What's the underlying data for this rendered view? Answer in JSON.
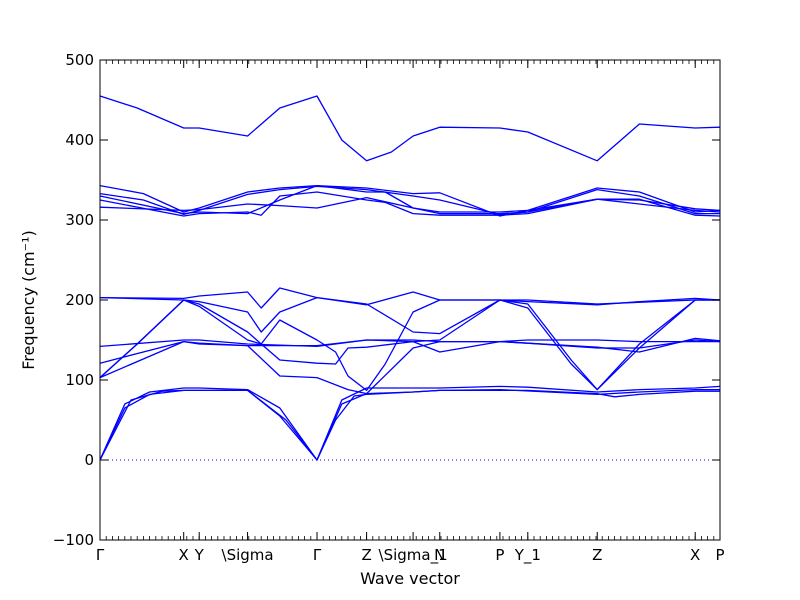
{
  "chart_data": {
    "type": "line",
    "xlabel": "Wave vector",
    "ylabel": "Frequency (cm⁻¹)",
    "ylim": [
      -100,
      500
    ],
    "y_ticks": [
      -100,
      0,
      100,
      200,
      300,
      400,
      500
    ],
    "y_tick_labels": [
      "−100",
      "0",
      "100",
      "200",
      "300",
      "400",
      "500"
    ],
    "grid": false,
    "line_color": "#0000ff",
    "zero_line_color": "#0000ff",
    "high_symmetry_points": [
      {
        "label": "Γ",
        "x": 0.0
      },
      {
        "label": "X",
        "x": 0.135
      },
      {
        "label": "Y",
        "x": 0.16
      },
      {
        "label": "\\Sigma",
        "x": 0.238
      },
      {
        "label": "Γ",
        "x": 0.35
      },
      {
        "label": "Z",
        "x": 0.43
      },
      {
        "label": "\\Sigma_1",
        "x": 0.505
      },
      {
        "label": "N",
        "x": 0.548
      },
      {
        "label": "P",
        "x": 0.645
      },
      {
        "label": "Y_1",
        "x": 0.69
      },
      {
        "label": "Z",
        "x": 0.802
      },
      {
        "label": "X",
        "x": 0.96
      },
      {
        "label": "P",
        "x": 1.0
      }
    ],
    "series": [
      {
        "values": [
          [
            0,
            455
          ],
          [
            0.06,
            440
          ],
          [
            0.135,
            415
          ],
          [
            0.16,
            415
          ],
          [
            0.238,
            405
          ],
          [
            0.29,
            440
          ],
          [
            0.35,
            455
          ],
          [
            0.39,
            400
          ],
          [
            0.43,
            374
          ],
          [
            0.47,
            385
          ],
          [
            0.505,
            405
          ],
          [
            0.548,
            416
          ],
          [
            0.645,
            415
          ],
          [
            0.69,
            410
          ],
          [
            0.802,
            374
          ],
          [
            0.87,
            420
          ],
          [
            0.96,
            415
          ],
          [
            1.0,
            416
          ]
        ]
      },
      {
        "values": [
          [
            0,
            343
          ],
          [
            0.07,
            333
          ],
          [
            0.135,
            310
          ],
          [
            0.16,
            315
          ],
          [
            0.238,
            335
          ],
          [
            0.29,
            340
          ],
          [
            0.35,
            343
          ],
          [
            0.43,
            340
          ],
          [
            0.505,
            333
          ],
          [
            0.548,
            334
          ],
          [
            0.645,
            305
          ],
          [
            0.69,
            312
          ],
          [
            0.802,
            340
          ],
          [
            0.87,
            335
          ],
          [
            0.96,
            310
          ],
          [
            1.0,
            312
          ]
        ]
      },
      {
        "values": [
          [
            0,
            333
          ],
          [
            0.07,
            325
          ],
          [
            0.135,
            307
          ],
          [
            0.16,
            312
          ],
          [
            0.238,
            332
          ],
          [
            0.29,
            338
          ],
          [
            0.35,
            342
          ],
          [
            0.43,
            338
          ],
          [
            0.505,
            330
          ],
          [
            0.548,
            325
          ],
          [
            0.645,
            307
          ],
          [
            0.69,
            310
          ],
          [
            0.802,
            338
          ],
          [
            0.87,
            330
          ],
          [
            0.96,
            308
          ],
          [
            1.0,
            308
          ]
        ]
      },
      {
        "values": [
          [
            0,
            316
          ],
          [
            0.135,
            312
          ],
          [
            0.16,
            313
          ],
          [
            0.238,
            320
          ],
          [
            0.29,
            318
          ],
          [
            0.35,
            315
          ],
          [
            0.43,
            328
          ],
          [
            0.505,
            315
          ],
          [
            0.548,
            310
          ],
          [
            0.645,
            310
          ],
          [
            0.69,
            312
          ],
          [
            0.802,
            326
          ],
          [
            0.87,
            325
          ],
          [
            0.96,
            314
          ],
          [
            1.0,
            312
          ]
        ]
      },
      {
        "values": [
          [
            0,
            325
          ],
          [
            0.135,
            305
          ],
          [
            0.16,
            308
          ],
          [
            0.238,
            310
          ],
          [
            0.26,
            306
          ],
          [
            0.29,
            330
          ],
          [
            0.35,
            335
          ],
          [
            0.43,
            325
          ],
          [
            0.46,
            322
          ],
          [
            0.505,
            308
          ],
          [
            0.548,
            306
          ],
          [
            0.645,
            306
          ],
          [
            0.69,
            308
          ],
          [
            0.802,
            326
          ],
          [
            0.87,
            326
          ],
          [
            0.96,
            306
          ],
          [
            1.0,
            305
          ]
        ]
      },
      {
        "values": [
          [
            0,
            330
          ],
          [
            0.135,
            308
          ],
          [
            0.16,
            310
          ],
          [
            0.238,
            308
          ],
          [
            0.29,
            325
          ],
          [
            0.35,
            343
          ],
          [
            0.43,
            335
          ],
          [
            0.46,
            335
          ],
          [
            0.505,
            315
          ],
          [
            0.548,
            308
          ],
          [
            0.645,
            308
          ],
          [
            0.69,
            310
          ],
          [
            0.802,
            326
          ],
          [
            0.96,
            312
          ],
          [
            1.0,
            310
          ]
        ]
      },
      {
        "values": [
          [
            0,
            203
          ],
          [
            0.135,
            202
          ],
          [
            0.16,
            205
          ],
          [
            0.238,
            210
          ],
          [
            0.26,
            190
          ],
          [
            0.29,
            215
          ],
          [
            0.35,
            203
          ],
          [
            0.43,
            194
          ],
          [
            0.505,
            210
          ],
          [
            0.548,
            200
          ],
          [
            0.645,
            200
          ],
          [
            0.69,
            198
          ],
          [
            0.802,
            194
          ],
          [
            0.87,
            198
          ],
          [
            0.96,
            202
          ],
          [
            1.0,
            200
          ]
        ]
      },
      {
        "values": [
          [
            0,
            203
          ],
          [
            0.135,
            200
          ],
          [
            0.16,
            198
          ],
          [
            0.238,
            185
          ],
          [
            0.26,
            160
          ],
          [
            0.29,
            185
          ],
          [
            0.35,
            203
          ],
          [
            0.43,
            195
          ],
          [
            0.505,
            160
          ],
          [
            0.548,
            158
          ],
          [
            0.645,
            200
          ],
          [
            0.69,
            200
          ],
          [
            0.802,
            195
          ],
          [
            0.96,
            200
          ],
          [
            1.0,
            200
          ]
        ]
      },
      {
        "values": [
          [
            0,
            103
          ],
          [
            0.06,
            145
          ],
          [
            0.135,
            200
          ],
          [
            0.16,
            195
          ],
          [
            0.238,
            160
          ],
          [
            0.26,
            145
          ],
          [
            0.29,
            125
          ],
          [
            0.35,
            121
          ],
          [
            0.38,
            120
          ],
          [
            0.4,
            140
          ],
          [
            0.43,
            141
          ],
          [
            0.505,
            148
          ],
          [
            0.548,
            150
          ],
          [
            0.645,
            200
          ],
          [
            0.69,
            190
          ],
          [
            0.76,
            120
          ],
          [
            0.802,
            88
          ],
          [
            0.87,
            140
          ],
          [
            0.96,
            200
          ],
          [
            1.0,
            200
          ]
        ]
      },
      {
        "values": [
          [
            0,
            103
          ],
          [
            0.06,
            145
          ],
          [
            0.135,
            200
          ],
          [
            0.16,
            192
          ],
          [
            0.238,
            150
          ],
          [
            0.26,
            145
          ],
          [
            0.29,
            175
          ],
          [
            0.35,
            150
          ],
          [
            0.38,
            135
          ],
          [
            0.4,
            105
          ],
          [
            0.43,
            87
          ],
          [
            0.46,
            120
          ],
          [
            0.505,
            185
          ],
          [
            0.548,
            200
          ],
          [
            0.645,
            200
          ],
          [
            0.69,
            195
          ],
          [
            0.76,
            125
          ],
          [
            0.802,
            88
          ],
          [
            0.87,
            145
          ],
          [
            0.96,
            200
          ],
          [
            1.0,
            200
          ]
        ]
      },
      {
        "values": [
          [
            0,
            142
          ],
          [
            0.135,
            150
          ],
          [
            0.16,
            150
          ],
          [
            0.238,
            145
          ],
          [
            0.35,
            142
          ],
          [
            0.43,
            150
          ],
          [
            0.505,
            150
          ],
          [
            0.548,
            148
          ],
          [
            0.645,
            148
          ],
          [
            0.69,
            150
          ],
          [
            0.802,
            150
          ],
          [
            0.87,
            148
          ],
          [
            0.96,
            148
          ],
          [
            1.0,
            148
          ]
        ]
      },
      {
        "values": [
          [
            0,
            121
          ],
          [
            0.135,
            148
          ],
          [
            0.16,
            146
          ],
          [
            0.238,
            143
          ],
          [
            0.35,
            143
          ],
          [
            0.43,
            150
          ],
          [
            0.505,
            148
          ],
          [
            0.548,
            135
          ],
          [
            0.645,
            148
          ],
          [
            0.69,
            146
          ],
          [
            0.802,
            141
          ],
          [
            0.87,
            135
          ],
          [
            0.96,
            152
          ],
          [
            1.0,
            149
          ]
        ]
      },
      {
        "values": [
          [
            0,
            103
          ],
          [
            0.135,
            148
          ],
          [
            0.16,
            145
          ],
          [
            0.238,
            143
          ],
          [
            0.29,
            105
          ],
          [
            0.35,
            103
          ],
          [
            0.4,
            88
          ],
          [
            0.43,
            83
          ],
          [
            0.505,
            140
          ],
          [
            0.548,
            148
          ],
          [
            0.645,
            148
          ],
          [
            0.69,
            146
          ],
          [
            0.802,
            140
          ],
          [
            0.87,
            140
          ],
          [
            0.96,
            150
          ],
          [
            1.0,
            148
          ]
        ]
      },
      {
        "values": [
          [
            0,
            0
          ],
          [
            0.04,
            70
          ],
          [
            0.08,
            85
          ],
          [
            0.135,
            90
          ],
          [
            0.16,
            90
          ],
          [
            0.238,
            88
          ],
          [
            0.29,
            65
          ],
          [
            0.35,
            0
          ],
          [
            0.39,
            75
          ],
          [
            0.43,
            90
          ],
          [
            0.505,
            90
          ],
          [
            0.548,
            90
          ],
          [
            0.645,
            92
          ],
          [
            0.69,
            91
          ],
          [
            0.802,
            85
          ],
          [
            0.87,
            88
          ],
          [
            0.96,
            90
          ],
          [
            1.0,
            92
          ]
        ]
      },
      {
        "values": [
          [
            0,
            0
          ],
          [
            0.04,
            65
          ],
          [
            0.08,
            82
          ],
          [
            0.135,
            87
          ],
          [
            0.16,
            87
          ],
          [
            0.238,
            87
          ],
          [
            0.29,
            55
          ],
          [
            0.35,
            0
          ],
          [
            0.38,
            50
          ],
          [
            0.41,
            80
          ],
          [
            0.43,
            82
          ],
          [
            0.505,
            85
          ],
          [
            0.548,
            87
          ],
          [
            0.645,
            87
          ],
          [
            0.69,
            87
          ],
          [
            0.802,
            83
          ],
          [
            0.83,
            79
          ],
          [
            0.87,
            82
          ],
          [
            0.96,
            86
          ],
          [
            1.0,
            86
          ]
        ]
      },
      {
        "values": [
          [
            0,
            0
          ],
          [
            0.05,
            75
          ],
          [
            0.1,
            86
          ],
          [
            0.135,
            87
          ],
          [
            0.238,
            87
          ],
          [
            0.3,
            50
          ],
          [
            0.35,
            0
          ],
          [
            0.39,
            70
          ],
          [
            0.43,
            83
          ],
          [
            0.505,
            85
          ],
          [
            0.548,
            87
          ],
          [
            0.645,
            88
          ],
          [
            0.802,
            82
          ],
          [
            0.87,
            85
          ],
          [
            0.96,
            88
          ],
          [
            1.0,
            88
          ]
        ]
      }
    ]
  }
}
